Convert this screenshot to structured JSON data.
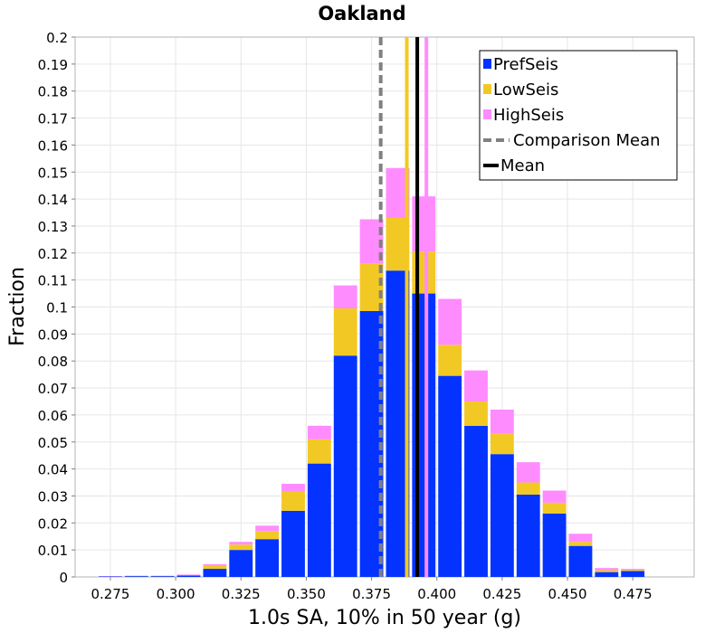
{
  "chart_data": {
    "type": "bar",
    "stacked": true,
    "title": "Oakland",
    "xlabel": "1.0s SA, 10% in 50 year (g)",
    "ylabel": "Fraction",
    "xlim": [
      0.2615,
      0.4985
    ],
    "ylim": [
      0,
      0.2
    ],
    "bin_width": 0.01,
    "grid": true,
    "legend_position": "top-right",
    "x_ticks": [
      "0.275",
      "0.300",
      "0.325",
      "0.350",
      "0.375",
      "0.400",
      "0.425",
      "0.450",
      "0.475"
    ],
    "x_tick_values": [
      0.275,
      0.3,
      0.325,
      0.35,
      0.375,
      0.4,
      0.425,
      0.45,
      0.475
    ],
    "y_ticks": [
      "0",
      "0.01",
      "0.02",
      "0.03",
      "0.04",
      "0.05",
      "0.06",
      "0.07",
      "0.08",
      "0.09",
      "0.1",
      "0.11",
      "0.12",
      "0.13",
      "0.14",
      "0.15",
      "0.16",
      "0.17",
      "0.18",
      "0.19",
      "0.2"
    ],
    "x": [
      0.275,
      0.285,
      0.295,
      0.305,
      0.315,
      0.325,
      0.335,
      0.345,
      0.355,
      0.365,
      0.375,
      0.385,
      0.395,
      0.405,
      0.415,
      0.425,
      0.435,
      0.445,
      0.455,
      0.465,
      0.475
    ],
    "series": [
      {
        "name": "PrefSeis",
        "color": "#0433ff",
        "values": [
          0.0002,
          0.0003,
          0.0003,
          0.0005,
          0.003,
          0.01,
          0.014,
          0.0245,
          0.042,
          0.082,
          0.0985,
          0.1135,
          0.105,
          0.0745,
          0.056,
          0.0455,
          0.0305,
          0.0235,
          0.0115,
          0.0018,
          0.0022
        ]
      },
      {
        "name": "LowSeis",
        "color": "#f2c924",
        "values": [
          0.0,
          0.0001,
          0.0001,
          0.0002,
          0.0012,
          0.002,
          0.003,
          0.007,
          0.009,
          0.0175,
          0.0175,
          0.0195,
          0.0155,
          0.0115,
          0.009,
          0.0075,
          0.0045,
          0.004,
          0.0015,
          0.0007,
          0.0004
        ]
      },
      {
        "name": "HighSeis",
        "color": "#ff8cff",
        "values": [
          0.0001,
          0.0001,
          0.0001,
          0.0002,
          0.0005,
          0.001,
          0.002,
          0.003,
          0.005,
          0.0085,
          0.0165,
          0.0185,
          0.0205,
          0.017,
          0.0115,
          0.009,
          0.0075,
          0.0045,
          0.003,
          0.0008,
          0.0004
        ]
      }
    ],
    "reference_lines": [
      {
        "name": "Comparison Mean",
        "x": 0.3785,
        "color": "#808080",
        "style": "dashed"
      },
      {
        "name": "Mean",
        "x": 0.3925,
        "color": "#000000",
        "style": "solid"
      },
      {
        "name": "LowSeis mean",
        "x": 0.3885,
        "color": "#f2c924",
        "style": "solid"
      },
      {
        "name": "HighSeis mean",
        "x": 0.396,
        "color": "#ff8cff",
        "style": "solid"
      }
    ],
    "legend": [
      {
        "label": "PrefSeis",
        "kind": "box",
        "color": "#0433ff"
      },
      {
        "label": "LowSeis",
        "kind": "box",
        "color": "#f2c924"
      },
      {
        "label": "HighSeis",
        "kind": "box",
        "color": "#ff8cff"
      },
      {
        "label": "Comparison Mean",
        "kind": "dashed-line",
        "color": "#808080"
      },
      {
        "label": "Mean",
        "kind": "line",
        "color": "#000000"
      }
    ]
  }
}
